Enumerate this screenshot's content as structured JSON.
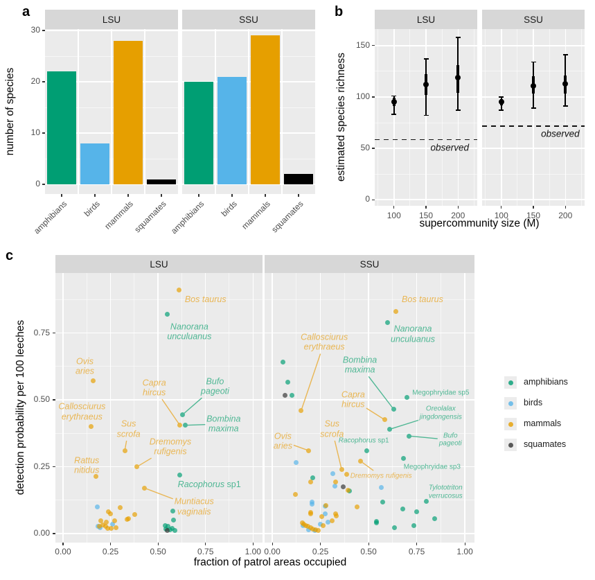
{
  "figure": {
    "background": "#FFFFFF",
    "panel_bg": "#EBEBEB",
    "strip_bg": "#D7D7D7",
    "grid_color": "#FFFFFF"
  },
  "classes": {
    "amphibians": {
      "fill": "#009E73",
      "label_color": "#4FB794"
    },
    "birds": {
      "fill": "#56B4E9",
      "label_color": "#7FC4EC"
    },
    "mammals": {
      "fill": "#E69F00",
      "label_color": "#E9B654"
    },
    "squamates": {
      "fill": "#1A1A1A",
      "label_color": "#666666"
    }
  },
  "legend": {
    "items": [
      {
        "label": "amphibians",
        "class": "amphibians"
      },
      {
        "label": "birds",
        "class": "birds"
      },
      {
        "label": "mammals",
        "class": "mammals"
      },
      {
        "label": "squamates",
        "class": "squamates"
      }
    ]
  },
  "chart_data": [
    {
      "id": "a",
      "type": "bar",
      "panel_letter": "a",
      "facet_titles": [
        "LSU",
        "SSU"
      ],
      "categories": [
        "amphibians",
        "birds",
        "mammals",
        "squamates"
      ],
      "series": [
        {
          "facet": "LSU",
          "values": [
            22,
            8,
            28,
            1
          ]
        },
        {
          "facet": "SSU",
          "values": [
            20,
            21,
            29,
            2
          ]
        }
      ],
      "ylabel": "number of species",
      "yticks": [
        0,
        10,
        20,
        30
      ],
      "ytick_labels": [
        "0",
        "10",
        "20",
        "30"
      ],
      "ylim": [
        -1.9,
        30.3
      ]
    },
    {
      "id": "b",
      "type": "pointrange",
      "panel_letter": "b",
      "facet_titles": [
        "LSU",
        "SSU"
      ],
      "xlabel": "supercommunity size (M)",
      "ylabel": "estimated species richness",
      "xticks": [
        100,
        150,
        200
      ],
      "xtick_labels": [
        "100",
        "150",
        "200"
      ],
      "yticks": [
        0,
        50,
        100,
        150
      ],
      "ytick_labels": [
        "0",
        "50",
        "100",
        "150"
      ],
      "xlim": [
        70,
        230
      ],
      "ylim": [
        -6,
        166
      ],
      "observed_label": "observed",
      "series": [
        {
          "facet": "LSU",
          "observed": 59,
          "observed_label_at": {
            "x": 187,
            "y": 51
          },
          "points": [
            {
              "x": 100,
              "est": 95,
              "inner": [
                91,
                99
              ],
              "outer": [
                83,
                101
              ]
            },
            {
              "x": 150,
              "est": 112,
              "inner": [
                102,
                122
              ],
              "outer": [
                82,
                137
              ]
            },
            {
              "x": 200,
              "est": 119,
              "inner": [
                104,
                131
              ],
              "outer": [
                87,
                158
              ]
            }
          ]
        },
        {
          "facet": "SSU",
          "observed": 72,
          "observed_label_at": {
            "x": 192,
            "y": 64.5
          },
          "points": [
            {
              "x": 100,
              "est": 95,
              "inner": [
                92,
                98
              ],
              "outer": [
                87,
                100
              ]
            },
            {
              "x": 150,
              "est": 111,
              "inner": [
                103,
                120
              ],
              "outer": [
                89,
                134
              ]
            },
            {
              "x": 200,
              "est": 113,
              "inner": [
                103,
                121
              ],
              "outer": [
                91,
                141
              ]
            }
          ]
        }
      ]
    },
    {
      "id": "c",
      "type": "scatter",
      "panel_letter": "c",
      "facet_titles": [
        "LSU",
        "SSU"
      ],
      "xlabel": "fraction of patrol areas occupied",
      "ylabel": "detection probability per 100 leeches",
      "xticks": [
        0,
        0.25,
        0.5,
        0.75,
        1
      ],
      "xtick_labels": [
        "0.00",
        "0.25",
        "0.50",
        "0.75",
        "1.00"
      ],
      "yticks": [
        0,
        0.25,
        0.5,
        0.75
      ],
      "ytick_labels": [
        "0.00",
        "0.25",
        "0.50",
        "0.75"
      ],
      "xlim": [
        -0.04,
        1.05
      ],
      "ylim": [
        -0.034,
        0.974
      ],
      "series": [
        {
          "facet": "LSU",
          "points": [
            {
              "x": 0.61,
              "y": 0.91,
              "c": "mammals",
              "label": "Bos taurus",
              "lx": 0.75,
              "ly": 0.875
            },
            {
              "x": 0.55,
              "y": 0.82,
              "c": "amphibians",
              "label": "Nanorana\nunculuanus",
              "lx": 0.665,
              "ly": 0.755
            },
            {
              "x": 0.16,
              "y": 0.57,
              "c": "mammals",
              "label": "Ovis\naries",
              "lx": 0.115,
              "ly": 0.625
            },
            {
              "x": 0.63,
              "y": 0.445,
              "c": "amphibians",
              "label": "Bufo\npageoti",
              "lx": 0.8,
              "ly": 0.55,
              "leader": true
            },
            {
              "x": 0.615,
              "y": 0.405,
              "c": "mammals",
              "label": "Capra\nhircus",
              "lx": 0.48,
              "ly": 0.545,
              "leader": true
            },
            {
              "x": 0.645,
              "y": 0.405,
              "c": "amphibians",
              "label": "Bombina\nmaxima",
              "lx": 0.845,
              "ly": 0.41,
              "leader": true
            },
            {
              "x": 0.148,
              "y": 0.4,
              "c": "mammals",
              "label": "Callosciurus\nerythraeus",
              "lx": 0.1,
              "ly": 0.455
            },
            {
              "x": 0.325,
              "y": 0.31,
              "c": "mammals",
              "label": "Sus\nscrofa",
              "lx": 0.345,
              "ly": 0.39,
              "leader": true
            },
            {
              "x": 0.39,
              "y": 0.25,
              "c": "mammals",
              "label": "Dremomys\nrufigenis",
              "lx": 0.565,
              "ly": 0.325,
              "leader": true
            },
            {
              "x": 0.175,
              "y": 0.215,
              "c": "mammals",
              "label": "Rattus\nnitidus",
              "lx": 0.125,
              "ly": 0.255
            },
            {
              "x": 0.615,
              "y": 0.22,
              "c": "amphibians",
              "label": "Racophorus sp1",
              "lx": 0.77,
              "ly": 0.185
            },
            {
              "x": 0.43,
              "y": 0.17,
              "c": "mammals",
              "label": "Muntiacus\nvaginalis",
              "lx": 0.69,
              "ly": 0.1,
              "leader": true
            },
            {
              "x": 0.18,
              "y": 0.1,
              "c": "birds"
            },
            {
              "x": 0.185,
              "y": 0.026,
              "c": "birds"
            },
            {
              "x": 0.196,
              "y": 0.021,
              "c": "birds"
            },
            {
              "x": 0.262,
              "y": 0.034,
              "c": "birds"
            },
            {
              "x": 0.24,
              "y": 0.082,
              "c": "mammals"
            },
            {
              "x": 0.25,
              "y": 0.073,
              "c": "mammals"
            },
            {
              "x": 0.3,
              "y": 0.097,
              "c": "mammals"
            },
            {
              "x": 0.199,
              "y": 0.047,
              "c": "mammals"
            },
            {
              "x": 0.229,
              "y": 0.043,
              "c": "mammals"
            },
            {
              "x": 0.27,
              "y": 0.047,
              "c": "mammals"
            },
            {
              "x": 0.193,
              "y": 0.026,
              "c": "mammals"
            },
            {
              "x": 0.226,
              "y": 0.028,
              "c": "mammals"
            },
            {
              "x": 0.235,
              "y": 0.019,
              "c": "mammals"
            },
            {
              "x": 0.345,
              "y": 0.056,
              "c": "mammals"
            },
            {
              "x": 0.377,
              "y": 0.071,
              "c": "mammals"
            },
            {
              "x": 0.336,
              "y": 0.052,
              "c": "mammals"
            },
            {
              "x": 0.21,
              "y": 0.033,
              "c": "mammals"
            },
            {
              "x": 0.255,
              "y": 0.02,
              "c": "mammals"
            },
            {
              "x": 0.28,
              "y": 0.022,
              "c": "mammals"
            },
            {
              "x": 0.577,
              "y": 0.084,
              "c": "amphibians"
            },
            {
              "x": 0.583,
              "y": 0.05,
              "c": "amphibians"
            },
            {
              "x": 0.538,
              "y": 0.03,
              "c": "amphibians"
            },
            {
              "x": 0.553,
              "y": 0.028,
              "c": "amphibians"
            },
            {
              "x": 0.576,
              "y": 0.02,
              "c": "amphibians"
            },
            {
              "x": 0.562,
              "y": 0.015,
              "c": "amphibians"
            },
            {
              "x": 0.54,
              "y": 0.017,
              "c": "amphibians"
            },
            {
              "x": 0.59,
              "y": 0.012,
              "c": "amphibians"
            },
            {
              "x": 0.548,
              "y": 0.011,
              "c": "squamates"
            }
          ]
        },
        {
          "facet": "SSU",
          "points": [
            {
              "x": 0.64,
              "y": 0.83,
              "c": "mammals",
              "label": "Bos taurus",
              "lx": 0.78,
              "ly": 0.875
            },
            {
              "x": 0.6,
              "y": 0.79,
              "c": "amphibians",
              "label": "Nanorana\nunculuanus",
              "lx": 0.73,
              "ly": 0.745
            },
            {
              "x": 0.15,
              "y": 0.46,
              "c": "mammals",
              "label": "Callosciurus\nerythraeus",
              "lx": 0.27,
              "ly": 0.715,
              "leader": true
            },
            {
              "x": 0.63,
              "y": 0.465,
              "c": "amphibians",
              "label": "Bombina\nmaxima",
              "lx": 0.455,
              "ly": 0.63,
              "leader": true
            },
            {
              "x": 0.7,
              "y": 0.51,
              "c": "amphibians",
              "label": "Megophryidae sp5",
              "lx": 0.875,
              "ly": 0.525,
              "size": "sm",
              "upright": true
            },
            {
              "x": 0.585,
              "y": 0.425,
              "c": "mammals",
              "label": "Capra\nhircus",
              "lx": 0.42,
              "ly": 0.5,
              "leader": true
            },
            {
              "x": 0.61,
              "y": 0.39,
              "c": "amphibians",
              "label": "Oreolalax\njingdongensis",
              "lx": 0.875,
              "ly": 0.45,
              "size": "sm",
              "leader": true
            },
            {
              "x": 0.71,
              "y": 0.365,
              "c": "amphibians",
              "label": "Bufo\npageoti",
              "lx": 0.925,
              "ly": 0.35,
              "size": "sm",
              "leader": true
            },
            {
              "x": 0.49,
              "y": 0.31,
              "c": "amphibians",
              "label": "Racophorus sp1",
              "lx": 0.475,
              "ly": 0.347,
              "size": "sm"
            },
            {
              "x": 0.68,
              "y": 0.28,
              "c": "amphibians",
              "label": "Megophryidae sp3",
              "lx": 0.83,
              "ly": 0.25,
              "size": "sm",
              "upright": true
            },
            {
              "x": 0.36,
              "y": 0.24,
              "c": "mammals",
              "label": "Sus\nscrofa",
              "lx": 0.31,
              "ly": 0.39,
              "leader": true
            },
            {
              "x": 0.46,
              "y": 0.27,
              "c": "mammals",
              "label": "Dremomys rufigenis",
              "lx": 0.565,
              "ly": 0.215,
              "size": "sm",
              "leader": true
            },
            {
              "x": 0.19,
              "y": 0.31,
              "c": "mammals",
              "label": "Ovis\naries",
              "lx": 0.055,
              "ly": 0.345,
              "leader": true
            },
            {
              "x": 0.8,
              "y": 0.12,
              "c": "amphibians",
              "label": "Tylototriton\nverrucosus",
              "lx": 0.9,
              "ly": 0.155,
              "size": "sm"
            },
            {
              "x": 0.055,
              "y": 0.64,
              "c": "amphibians"
            },
            {
              "x": 0.08,
              "y": 0.565,
              "c": "amphibians"
            },
            {
              "x": 0.103,
              "y": 0.518,
              "c": "amphibians"
            },
            {
              "x": 0.209,
              "y": 0.209,
              "c": "amphibians"
            },
            {
              "x": 0.574,
              "y": 0.119,
              "c": "amphibians"
            },
            {
              "x": 0.679,
              "y": 0.092,
              "c": "amphibians"
            },
            {
              "x": 0.748,
              "y": 0.082,
              "c": "amphibians"
            },
            {
              "x": 0.842,
              "y": 0.056,
              "c": "amphibians"
            },
            {
              "x": 0.54,
              "y": 0.046,
              "c": "amphibians"
            },
            {
              "x": 0.634,
              "y": 0.023,
              "c": "amphibians"
            },
            {
              "x": 0.736,
              "y": 0.03,
              "c": "amphibians"
            },
            {
              "x": 0.4,
              "y": 0.16,
              "c": "amphibians"
            },
            {
              "x": 0.541,
              "y": 0.041,
              "c": "amphibians"
            },
            {
              "x": 0.066,
              "y": 0.518,
              "c": "squamates"
            },
            {
              "x": 0.367,
              "y": 0.174,
              "c": "squamates"
            },
            {
              "x": 0.122,
              "y": 0.266,
              "c": "birds"
            },
            {
              "x": 0.314,
              "y": 0.225,
              "c": "birds"
            },
            {
              "x": 0.324,
              "y": 0.177,
              "c": "birds"
            },
            {
              "x": 0.566,
              "y": 0.172,
              "c": "birds"
            },
            {
              "x": 0.205,
              "y": 0.117,
              "c": "birds"
            },
            {
              "x": 0.274,
              "y": 0.103,
              "c": "birds"
            },
            {
              "x": 0.248,
              "y": 0.034,
              "c": "birds"
            },
            {
              "x": 0.289,
              "y": 0.043,
              "c": "birds"
            },
            {
              "x": 0.275,
              "y": 0.075,
              "c": "birds"
            },
            {
              "x": 0.207,
              "y": 0.11,
              "c": "birds"
            },
            {
              "x": 0.16,
              "y": 0.03,
              "c": "birds"
            },
            {
              "x": 0.19,
              "y": 0.015,
              "c": "birds"
            },
            {
              "x": 0.22,
              "y": 0.012,
              "c": "birds"
            },
            {
              "x": 0.2,
              "y": 0.194,
              "c": "mammals"
            },
            {
              "x": 0.329,
              "y": 0.192,
              "c": "mammals"
            },
            {
              "x": 0.386,
              "y": 0.222,
              "c": "mammals"
            },
            {
              "x": 0.393,
              "y": 0.163,
              "c": "mammals"
            },
            {
              "x": 0.12,
              "y": 0.147,
              "c": "mammals"
            },
            {
              "x": 0.2,
              "y": 0.073,
              "c": "mammals"
            },
            {
              "x": 0.255,
              "y": 0.063,
              "c": "mammals"
            },
            {
              "x": 0.332,
              "y": 0.067,
              "c": "mammals"
            },
            {
              "x": 0.279,
              "y": 0.106,
              "c": "mammals"
            },
            {
              "x": 0.201,
              "y": 0.078,
              "c": "mammals"
            },
            {
              "x": 0.327,
              "y": 0.075,
              "c": "mammals"
            },
            {
              "x": 0.441,
              "y": 0.101,
              "c": "mammals"
            },
            {
              "x": 0.155,
              "y": 0.04,
              "c": "mammals"
            },
            {
              "x": 0.165,
              "y": 0.035,
              "c": "mammals"
            },
            {
              "x": 0.175,
              "y": 0.03,
              "c": "mammals"
            },
            {
              "x": 0.185,
              "y": 0.026,
              "c": "mammals"
            },
            {
              "x": 0.198,
              "y": 0.022,
              "c": "mammals"
            },
            {
              "x": 0.21,
              "y": 0.018,
              "c": "mammals"
            },
            {
              "x": 0.265,
              "y": 0.029,
              "c": "mammals"
            },
            {
              "x": 0.225,
              "y": 0.015,
              "c": "mammals"
            },
            {
              "x": 0.24,
              "y": 0.012,
              "c": "mammals"
            },
            {
              "x": 0.31,
              "y": 0.047,
              "c": "mammals"
            }
          ]
        }
      ]
    }
  ]
}
